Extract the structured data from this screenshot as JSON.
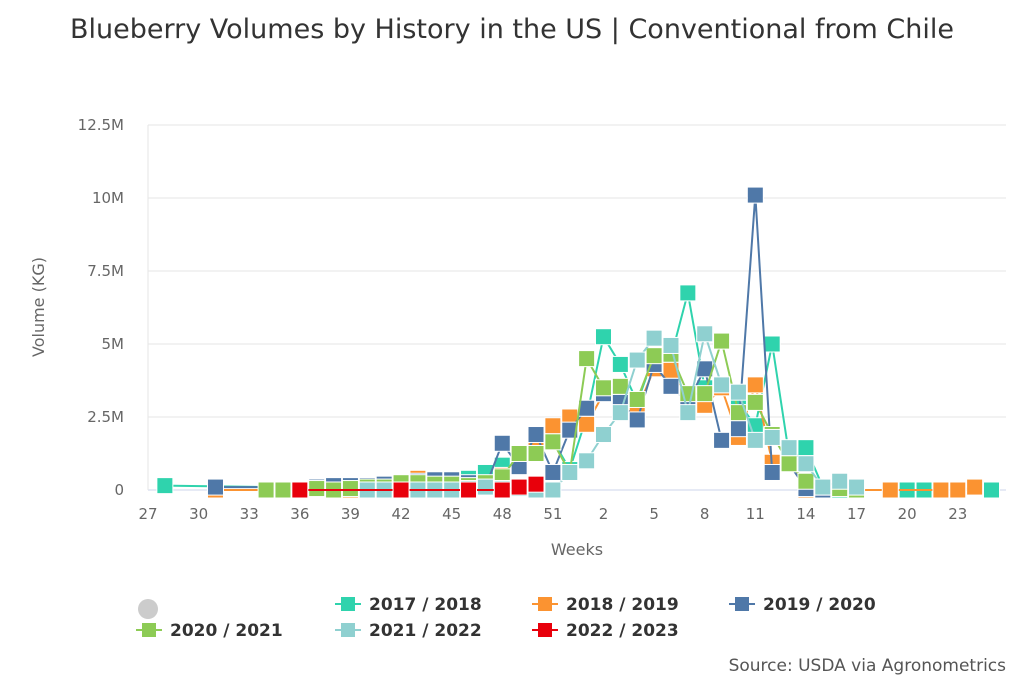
{
  "chart_data": {
    "type": "line",
    "title": "Blueberry Volumes by History in the US | Conventional from Chile",
    "xlabel": "Weeks",
    "ylabel": "Volume (KG)",
    "ylim": [
      0,
      12500000
    ],
    "yticks": [
      "0",
      "2.5M",
      "5M",
      "7.5M",
      "10M",
      "12.5M"
    ],
    "xticks": [
      "27",
      "30",
      "33",
      "36",
      "39",
      "42",
      "45",
      "48",
      "51",
      "2",
      "5",
      "8",
      "11",
      "14",
      "17",
      "20",
      "23"
    ],
    "grid": true,
    "legend_position": "bottom",
    "value_unit": "million KG",
    "categories": [
      "27",
      "28",
      "29",
      "30",
      "31",
      "32",
      "33",
      "34",
      "35",
      "36",
      "37",
      "38",
      "39",
      "40",
      "41",
      "42",
      "43",
      "44",
      "45",
      "46",
      "47",
      "48",
      "49",
      "50",
      "51",
      "52",
      "1",
      "2",
      "3",
      "4",
      "5",
      "6",
      "7",
      "8",
      "9",
      "10",
      "11",
      "12",
      "13",
      "14",
      "15",
      "16",
      "17",
      "18",
      "19",
      "20",
      "21",
      "22",
      "23",
      "24",
      "25"
    ],
    "series": [
      {
        "name": "2017 / 2018",
        "color": "#2fd3ad",
        "values": [
          null,
          0.15,
          null,
          null,
          null,
          null,
          null,
          null,
          null,
          null,
          null,
          null,
          null,
          0.05,
          0.1,
          0.1,
          0.15,
          0.2,
          0.35,
          0.4,
          0.6,
          0.85,
          1.2,
          1.3,
          1.7,
          0.7,
          2.5,
          5.25,
          4.3,
          3.0,
          4.6,
          4.55,
          6.75,
          3.5,
          3.6,
          3.0,
          2.2,
          5.0,
          1.2,
          1.45,
          0.1,
          0.0,
          null,
          null,
          null,
          0,
          0,
          null,
          null,
          null,
          0
        ]
      },
      {
        "name": "2018 / 2019",
        "color": "#fb9331",
        "values": [
          null,
          null,
          null,
          null,
          0,
          null,
          null,
          null,
          null,
          null,
          null,
          null,
          0,
          0.05,
          0.1,
          0.15,
          0.4,
          0.25,
          0.2,
          0.15,
          0.2,
          0.5,
          1.0,
          1.5,
          2.2,
          2.5,
          2.25,
          3.3,
          3.3,
          2.75,
          4.15,
          4.1,
          3.1,
          2.9,
          3.5,
          1.8,
          3.6,
          0.95,
          1.0,
          0,
          null,
          null,
          null,
          null,
          0,
          null,
          null,
          0,
          0,
          0.1,
          null
        ]
      },
      {
        "name": "2019 / 2020",
        "color": "#4f78a8",
        "values": [
          null,
          null,
          null,
          null,
          0.1,
          null,
          null,
          null,
          null,
          null,
          0.1,
          0.15,
          0.15,
          0.15,
          0.2,
          0.25,
          0.3,
          0.35,
          0.35,
          0.25,
          0.1,
          1.6,
          0.8,
          1.9,
          0.6,
          2.05,
          2.8,
          3.3,
          3.0,
          2.4,
          4.3,
          3.55,
          3.0,
          4.15,
          1.7,
          2.1,
          10.1,
          0.6,
          0.9,
          0.05,
          0,
          null,
          null,
          null,
          null,
          null,
          null,
          null,
          null,
          null,
          null
        ]
      },
      {
        "name": "2020 / 2021",
        "color": "#8dcb55",
        "values": [
          null,
          null,
          null,
          null,
          null,
          null,
          null,
          0,
          0,
          null,
          0.05,
          0,
          0.05,
          0.1,
          0.1,
          0.25,
          0.25,
          0.2,
          0.2,
          0.15,
          0.25,
          0.45,
          1.25,
          1.25,
          1.65,
          0.6,
          4.5,
          3.5,
          3.55,
          3.1,
          4.6,
          4.65,
          3.3,
          3.3,
          5.1,
          2.65,
          3.0,
          1.9,
          0.9,
          0.3,
          0.1,
          0.05,
          0,
          null,
          null,
          null,
          null,
          null,
          null,
          null,
          null
        ]
      },
      {
        "name": "2021 / 2022",
        "color": "#8fd0d0",
        "values": [
          null,
          null,
          null,
          null,
          null,
          null,
          null,
          null,
          null,
          null,
          null,
          null,
          null,
          0,
          0,
          null,
          0,
          0,
          0,
          0.05,
          0.1,
          0.05,
          0.05,
          0,
          0,
          0.6,
          1.0,
          1.9,
          2.65,
          4.45,
          5.2,
          4.95,
          2.65,
          5.35,
          3.6,
          3.35,
          1.7,
          1.8,
          1.45,
          0.9,
          0.1,
          0.3,
          0.1,
          null,
          null,
          null,
          null,
          null,
          null,
          null,
          null
        ]
      },
      {
        "name": "2022 / 2023",
        "color": "#e8000b",
        "values": [
          null,
          null,
          null,
          null,
          null,
          null,
          null,
          null,
          null,
          0,
          null,
          null,
          null,
          null,
          null,
          0,
          null,
          null,
          null,
          0,
          null,
          0,
          0.1,
          0.2,
          null,
          null,
          null,
          null,
          null,
          null,
          null,
          null,
          null,
          null,
          null,
          null,
          null,
          null,
          null,
          null,
          null,
          null,
          null,
          null,
          null,
          null,
          null,
          null,
          null,
          null,
          null
        ]
      }
    ]
  },
  "legend": {
    "toggle_icon": "circle-toggle"
  },
  "source": "Source: USDA via Agronometrics"
}
